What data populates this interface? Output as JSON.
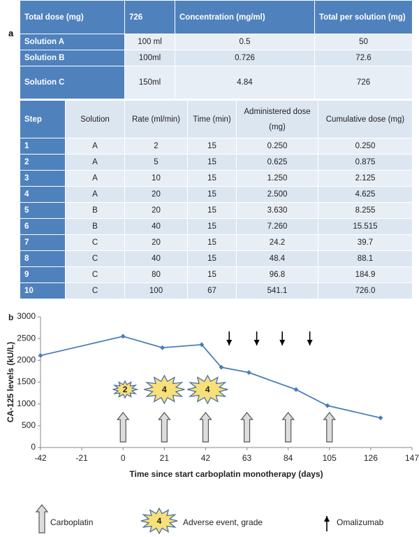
{
  "panel_a": {
    "label": "a",
    "solutions_table": {
      "header": [
        "Total dose (mg)",
        "726",
        "Concentration (mg/ml)",
        "Total per solution (mg)"
      ],
      "rows": [
        [
          "Solution A",
          "100 ml",
          "0.5",
          "50"
        ],
        [
          "Solution B",
          "100ml",
          "0.726",
          "72.6"
        ],
        [
          "Solution C",
          "150ml",
          "4.84",
          "726"
        ]
      ]
    },
    "steps_table": {
      "header": [
        "Step",
        "Solution",
        "Rate (ml/min)",
        "Time (min)",
        "Administered dose (mg)",
        "Cumulative dose (mg)"
      ],
      "rows": [
        [
          "1",
          "A",
          "2",
          "15",
          "0.250",
          "0.250"
        ],
        [
          "2",
          "A",
          "5",
          "15",
          "0.625",
          "0.875"
        ],
        [
          "3",
          "A",
          "10",
          "15",
          "1.250",
          "2.125"
        ],
        [
          "4",
          "A",
          "20",
          "15",
          "2.500",
          "4.625"
        ],
        [
          "5",
          "B",
          "20",
          "15",
          "3.630",
          "8.255"
        ],
        [
          "6",
          "B",
          "40",
          "15",
          "7.260",
          "15.515"
        ],
        [
          "7",
          "C",
          "20",
          "15",
          "24.2",
          "39.7"
        ],
        [
          "8",
          "C",
          "40",
          "15",
          "48.4",
          "88.1"
        ],
        [
          "9",
          "C",
          "80",
          "15",
          "96.8",
          "184.9"
        ],
        [
          "10",
          "C",
          "100",
          "67",
          "541.1",
          "726.0"
        ]
      ]
    }
  },
  "chart_data": {
    "type": "line",
    "panel_label": "b",
    "x_label": "Time since start carboplatin monotherapy (days)",
    "y_label": "CA-125 levels (kU/L)",
    "x": [
      -42,
      0,
      20,
      40,
      50,
      64,
      88,
      104,
      131
    ],
    "series": [
      {
        "name": "CA-125",
        "color": "#4a7ebb",
        "values": [
          2110,
          2550,
          2290,
          2360,
          1840,
          1720,
          1330,
          960,
          680
        ]
      }
    ],
    "xlim": [
      -42,
      147
    ],
    "xticks": [
      -42,
      -21,
      0,
      21,
      42,
      63,
      84,
      105,
      126,
      147
    ],
    "ylim": [
      0,
      3000
    ],
    "yticks": [
      0,
      500,
      1000,
      1500,
      2000,
      2500,
      3000
    ],
    "carboplatin_days": [
      0,
      21,
      42,
      63,
      84,
      105
    ],
    "omalizumab_days": [
      54,
      68,
      81,
      95
    ],
    "adverse_events": [
      {
        "day": 1,
        "grade": 2
      },
      {
        "day": 21,
        "grade": 4
      },
      {
        "day": 43,
        "grade": 4
      }
    ],
    "legend": {
      "carboplatin": "Carboplatin",
      "adverse_event": "Adverse event, grade",
      "adverse_event_symbol": "4",
      "omalizumab": "Omalizumab"
    }
  }
}
